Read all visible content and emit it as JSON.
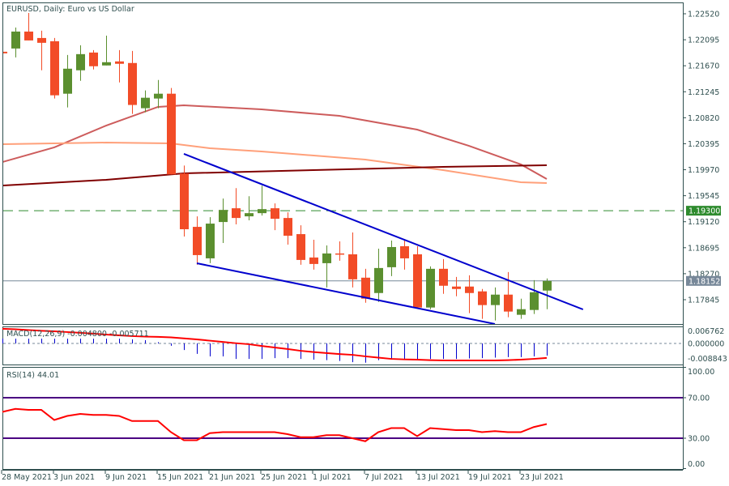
{
  "title": "EURUSD, Daily:  Euro vs US Dollar",
  "colors": {
    "bull": "#5b8f2f",
    "bear": "#f24c27",
    "frame": "#2f4f4f",
    "trend": "#0000cd",
    "ma_fast": "#cd5c5c",
    "ma_mid": "#ffa07a",
    "ma_slow": "#800000",
    "level": "#2e8b2e",
    "last": "#778899",
    "rsi": "#ff0000",
    "rsi_levels": "#4b0082",
    "macd_hist": "#0000cd",
    "macd_signal": "#ff0000"
  },
  "chart_data": {
    "type": "candlestick",
    "symbol": "EURUSD",
    "timeframe": "Daily",
    "price_axis_ticks": [
      "1.22520",
      "1.22095",
      "1.21670",
      "1.21245",
      "1.20820",
      "1.20395",
      "1.19970",
      "1.19545",
      "1.19120",
      "1.18695",
      "1.18270",
      "1.17845"
    ],
    "ylim": [
      1.17,
      1.228
    ],
    "date_labels": [
      {
        "index": 0,
        "label": "28 May 2021"
      },
      {
        "index": 4,
        "label": "3 Jun 2021"
      },
      {
        "index": 8,
        "label": "9 Jun 2021"
      },
      {
        "index": 12,
        "label": "15 Jun 2021"
      },
      {
        "index": 16,
        "label": "21 Jun 2021"
      },
      {
        "index": 20,
        "label": "25 Jun 2021"
      },
      {
        "index": 24,
        "label": "1 Jul 2021"
      },
      {
        "index": 28,
        "label": "7 Jul 2021"
      },
      {
        "index": 32,
        "label": "13 Jul 2021"
      },
      {
        "index": 36,
        "label": "19 Jul 2021"
      },
      {
        "index": 40,
        "label": "23 Jul 2021"
      }
    ],
    "ohlc": [
      [
        1.21899,
        1.21926,
        1.21847,
        1.21873
      ],
      [
        1.21952,
        1.22295,
        1.21807,
        1.22229
      ],
      [
        1.22229,
        1.22533,
        1.22084,
        1.22084
      ],
      [
        1.22124,
        1.22243,
        1.21596,
        1.22045
      ],
      [
        1.22071,
        1.22124,
        1.21134,
        1.21187
      ],
      [
        1.21213,
        1.21847,
        1.20989,
        1.21622
      ],
      [
        1.21596,
        1.22005,
        1.21424,
        1.2186
      ],
      [
        1.21886,
        1.21926,
        1.21609,
        1.21662
      ],
      [
        1.21675,
        1.22163,
        1.21675,
        1.21728
      ],
      [
        1.21741,
        1.21926,
        1.21398,
        1.21702
      ],
      [
        1.21715,
        1.21913,
        1.20883,
        1.21029
      ],
      [
        1.20976,
        1.21266,
        1.2091,
        1.21147
      ],
      [
        1.21134,
        1.21438,
        1.20976,
        1.21213
      ],
      [
        1.21213,
        1.21306,
        1.19894,
        1.19894
      ],
      [
        1.19907,
        1.20039,
        1.18878,
        1.18997
      ],
      [
        1.19036,
        1.19208,
        1.18416,
        1.18574
      ],
      [
        1.18521,
        1.19194,
        1.18442,
        1.19089
      ],
      [
        1.19115,
        1.19498,
        1.18772,
        1.19313
      ],
      [
        1.1934,
        1.19669,
        1.19076,
        1.19181
      ],
      [
        1.19208,
        1.19537,
        1.19142,
        1.1926
      ],
      [
        1.1926,
        1.19709,
        1.19221,
        1.19326
      ],
      [
        1.1934,
        1.19419,
        1.18983,
        1.19168
      ],
      [
        1.19181,
        1.19274,
        1.18746,
        1.18891
      ],
      [
        1.18917,
        1.19062,
        1.18416,
        1.18495
      ],
      [
        1.18535,
        1.18825,
        1.18337,
        1.18429
      ],
      [
        1.18442,
        1.18733,
        1.18046,
        1.18601
      ],
      [
        1.18601,
        1.18799,
        1.18482,
        1.18587
      ],
      [
        1.18587,
        1.18944,
        1.18046,
        1.18178
      ],
      [
        1.18205,
        1.1835,
        1.17796,
        1.17862
      ],
      [
        1.17954,
        1.1868,
        1.17809,
        1.18363
      ],
      [
        1.18376,
        1.18812,
        1.18231,
        1.18706
      ],
      [
        1.18719,
        1.18812,
        1.18337,
        1.18521
      ],
      [
        1.18587,
        1.18719,
        1.17703,
        1.17717
      ],
      [
        1.17717,
        1.1839,
        1.1769,
        1.1835
      ],
      [
        1.1835,
        1.18508,
        1.17941,
        1.18073
      ],
      [
        1.1806,
        1.18218,
        1.17901,
        1.1802
      ],
      [
        1.1806,
        1.18244,
        1.17624,
        1.17954
      ],
      [
        1.17981,
        1.1802,
        1.17532,
        1.17757
      ],
      [
        1.17757,
        1.18046,
        1.17505,
        1.17928
      ],
      [
        1.17928,
        1.18297,
        1.17558,
        1.17651
      ],
      [
        1.17598,
        1.17862,
        1.17532,
        1.1769
      ],
      [
        1.17677,
        1.18165,
        1.17611,
        1.17967
      ],
      [
        1.17994,
        1.18192,
        1.1769,
        1.18152
      ]
    ],
    "moving_averages": [
      {
        "name": "ma_fast",
        "points": [
          [
            0,
            1.20096
          ],
          [
            4,
            1.20335
          ],
          [
            8,
            1.20692
          ],
          [
            12,
            1.20997
          ],
          [
            14,
            1.21023
          ],
          [
            20,
            1.20957
          ],
          [
            26,
            1.20851
          ],
          [
            32,
            1.20626
          ],
          [
            36,
            1.20361
          ],
          [
            40,
            1.20057
          ],
          [
            42,
            1.19818
          ]
        ]
      },
      {
        "name": "ma_mid",
        "points": [
          [
            0,
            1.20388
          ],
          [
            8,
            1.20414
          ],
          [
            13,
            1.20401
          ],
          [
            16,
            1.20322
          ],
          [
            20,
            1.20269
          ],
          [
            28,
            1.20136
          ],
          [
            34,
            1.19964
          ],
          [
            40,
            1.19765
          ],
          [
            42,
            1.19752
          ]
        ]
      },
      {
        "name": "ma_slow",
        "points": [
          [
            0,
            1.19712
          ],
          [
            8,
            1.19805
          ],
          [
            14,
            1.19911
          ],
          [
            24,
            1.19964
          ],
          [
            34,
            1.20017
          ],
          [
            42,
            1.20043
          ]
        ]
      }
    ],
    "trendlines": [
      {
        "name": "upper",
        "from": [
          14,
          1.20229
        ],
        "to": [
          44.8,
          1.17686
        ]
      },
      {
        "name": "lower",
        "from": [
          15,
          1.18441
        ],
        "to": [
          38,
          1.17448
        ]
      }
    ],
    "levels": {
      "resistance": {
        "value": 1.193,
        "label": "1.19300"
      },
      "last_price": {
        "value": 1.18152,
        "label": "1.18152"
      }
    }
  },
  "macd": {
    "label": "MACD(12,26,9) -0.004800 -0.005711",
    "ticks": [
      {
        "value": 0.006762,
        "label": "0.006762"
      },
      {
        "value": 0,
        "label": "0.000000"
      },
      {
        "value": -0.008843,
        "label": "-0.008843"
      }
    ],
    "histogram": [
      0.0019,
      0.0019,
      0.0019,
      0.0019,
      0.0019,
      0.0019,
      0.0019,
      0.0019,
      0.0019,
      0.0019,
      0.0016,
      0.0013,
      0.0005,
      -0.0009,
      -0.0026,
      -0.0041,
      -0.0051,
      -0.0051,
      -0.0061,
      -0.0061,
      -0.0061,
      -0.0058,
      -0.0058,
      -0.0061,
      -0.0064,
      -0.0066,
      -0.0069,
      -0.0074,
      -0.0076,
      -0.0066,
      -0.0061,
      -0.0061,
      -0.0064,
      -0.0061,
      -0.0061,
      -0.0061,
      -0.0059,
      -0.0058,
      -0.0056,
      -0.0054,
      -0.0054,
      -0.0051,
      -0.0048
    ],
    "signal": [
      0.0058,
      0.0056,
      0.0053,
      0.005,
      0.0048,
      0.0045,
      0.0042,
      0.0039,
      0.0035,
      0.0032,
      0.0029,
      0.0027,
      0.0026,
      0.0024,
      0.002,
      0.0016,
      0.0011,
      0.0006,
      0.0001,
      -0.0003,
      -0.001,
      -0.0016,
      -0.0022,
      -0.0029,
      -0.0034,
      -0.0038,
      -0.0042,
      -0.0045,
      -0.0051,
      -0.0056,
      -0.0061,
      -0.0063,
      -0.0064,
      -0.0066,
      -0.0067,
      -0.0067,
      -0.0067,
      -0.0067,
      -0.0067,
      -0.0066,
      -0.0064,
      -0.0061,
      -0.005711
    ]
  },
  "rsi": {
    "label": "RSI(14) 44.01",
    "ticks": [
      {
        "value": 100,
        "label": "100.00"
      },
      {
        "value": 70,
        "label": "70.00"
      },
      {
        "value": 30,
        "label": "30.00"
      },
      {
        "value": 0,
        "label": "0.00"
      }
    ],
    "levels": [
      70,
      30
    ],
    "values": [
      56,
      59,
      58,
      58,
      48,
      52,
      54,
      53,
      53,
      52,
      47,
      47,
      47,
      36,
      28,
      28,
      35,
      36,
      36,
      36,
      36,
      36,
      34,
      31,
      31,
      33,
      33,
      30,
      27,
      36,
      40,
      40,
      32,
      40,
      39,
      38,
      38,
      36,
      37,
      36,
      36,
      41,
      44.01
    ]
  }
}
